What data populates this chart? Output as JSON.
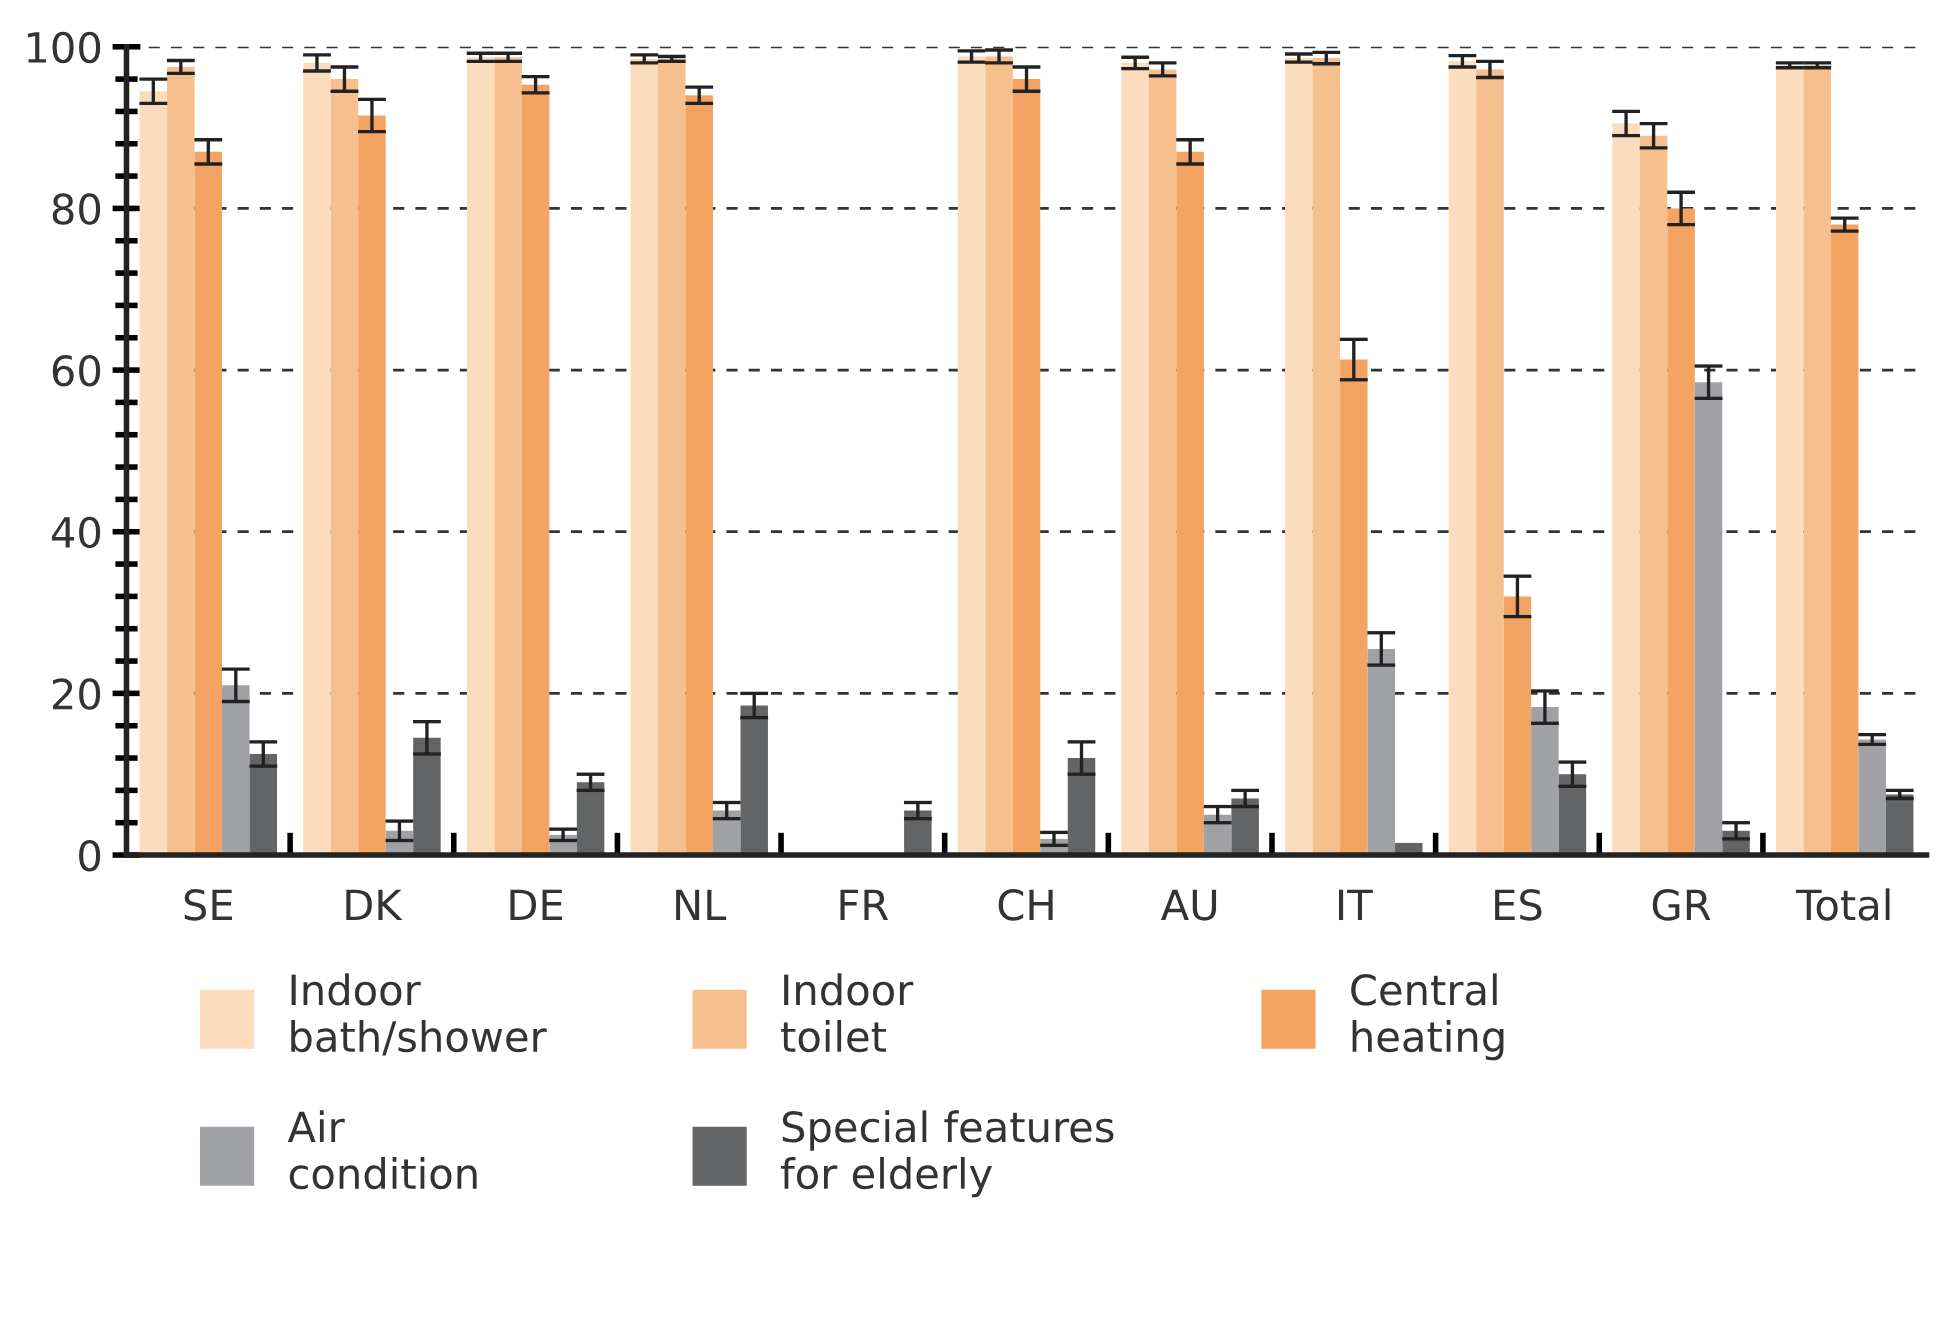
{
  "chart_data": {
    "type": "bar",
    "categories": [
      "SE",
      "DK",
      "DE",
      "NL",
      "FR",
      "CH",
      "AU",
      "IT",
      "ES",
      "GR",
      "Total"
    ],
    "series": [
      {
        "name": "Indoor\nbath/shower",
        "color": "#fbdcbd",
        "values": [
          94.5,
          98,
          98.7,
          98.5,
          null,
          98.8,
          98,
          98.6,
          98.2,
          90.5,
          97.7
        ],
        "errors": [
          1.5,
          1,
          0.5,
          0.5,
          null,
          0.7,
          0.7,
          0.5,
          0.7,
          1.5,
          0.3
        ]
      },
      {
        "name": "Indoor\ntoilet",
        "color": "#f6bf8e",
        "values": [
          97.5,
          96,
          98.7,
          98.5,
          null,
          98.8,
          97.2,
          98.6,
          97.2,
          89,
          97.7
        ],
        "errors": [
          0.8,
          1.5,
          0.5,
          0.3,
          null,
          0.8,
          0.8,
          0.7,
          1,
          1.5,
          0.3
        ]
      },
      {
        "name": "Central\nheating",
        "color": "#f4a462",
        "values": [
          87,
          91.5,
          95.3,
          94,
          null,
          96,
          87,
          61.3,
          32,
          80,
          78
        ],
        "errors": [
          1.5,
          2,
          1,
          1,
          null,
          1.5,
          1.5,
          2.5,
          2.5,
          2,
          0.8
        ]
      },
      {
        "name": "Air\ncondition",
        "color": "#a0a1a5",
        "values": [
          21,
          3,
          2.5,
          5.5,
          null,
          2,
          5,
          25.5,
          18.3,
          58.5,
          14.3
        ],
        "errors": [
          2,
          1.2,
          0.7,
          1,
          null,
          0.8,
          1,
          2,
          2,
          2,
          0.6
        ]
      },
      {
        "name": "Special features\nfor elderly",
        "color": "#636466",
        "values": [
          12.5,
          14.5,
          9,
          18.5,
          5.5,
          12,
          7,
          1.5,
          10,
          3,
          7.5
        ],
        "errors": [
          1.5,
          2,
          1,
          1.5,
          1,
          2,
          1,
          null,
          1.5,
          1,
          0.5
        ]
      }
    ],
    "ylim": [
      0,
      100
    ],
    "yticks": [
      0,
      20,
      40,
      60,
      80,
      100
    ],
    "grid": "y",
    "legend": "bottom"
  }
}
